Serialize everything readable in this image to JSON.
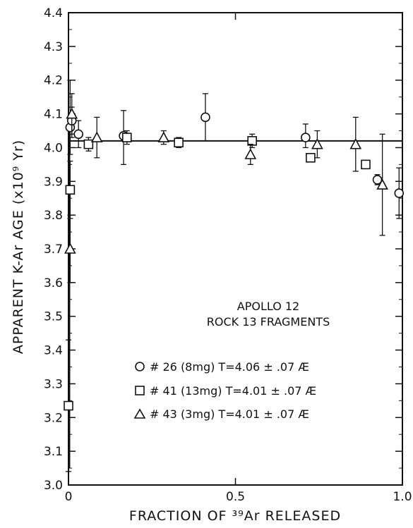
{
  "chart_data": {
    "type": "scatter",
    "title": "",
    "xlabel": "FRACTION OF ³⁹Ar RELEASED",
    "ylabel": "APPARENT K-Ar AGE (x10⁹ Yr)",
    "xlim": [
      0,
      1.0
    ],
    "ylim": [
      3.0,
      4.4
    ],
    "x_ticks": [
      "0",
      "0.5",
      "1.0"
    ],
    "y_ticks": [
      "3.0",
      "3.1",
      "3.2",
      "3.3",
      "3.4",
      "3.5",
      "3.6",
      "3.7",
      "3.8",
      "3.9",
      "4.0",
      "4.1",
      "4.2",
      "4.3",
      "4.4"
    ],
    "grid": false,
    "reference_line": 4.02,
    "annotation": [
      "APOLLO 12",
      "ROCK 13 FRAGMENTS"
    ],
    "legend_position": "lower-right",
    "series": [
      {
        "name": "# 26 (8mg) T=4.06 ± .07 Æ",
        "marker": "circle",
        "points": [
          {
            "x": 0.005,
            "y": 4.06,
            "lo": 3.98,
            "hi": 4.2
          },
          {
            "x": 0.01,
            "y": 4.08,
            "lo": 4.03,
            "hi": 4.12
          },
          {
            "x": 0.03,
            "y": 4.04,
            "lo": 4.0,
            "hi": 4.08
          },
          {
            "x": 0.165,
            "y": 4.035,
            "lo": 3.95,
            "hi": 4.11
          },
          {
            "x": 0.41,
            "y": 4.09,
            "lo": 4.02,
            "hi": 4.16
          },
          {
            "x": 0.71,
            "y": 4.03,
            "lo": 4.0,
            "hi": 4.07
          },
          {
            "x": 0.925,
            "y": 3.905,
            "lo": 3.89,
            "hi": 3.92
          },
          {
            "x": 0.99,
            "y": 3.865,
            "lo": 3.79,
            "hi": 3.94
          }
        ]
      },
      {
        "name": "# 41 (13mg) T=4.01 ± .07 Æ",
        "marker": "square",
        "points": [
          {
            "x": 0.0,
            "y": 3.235,
            "lo": 3.04,
            "hi": 3.43
          },
          {
            "x": 0.005,
            "y": 3.875,
            "lo": 3.79,
            "hi": 3.96
          },
          {
            "x": 0.06,
            "y": 4.01,
            "lo": 3.99,
            "hi": 4.03
          },
          {
            "x": 0.175,
            "y": 4.03,
            "lo": 4.01,
            "hi": 4.05
          },
          {
            "x": 0.33,
            "y": 4.015,
            "lo": 4.0,
            "hi": 4.03
          },
          {
            "x": 0.55,
            "y": 4.02,
            "lo": 4.0,
            "hi": 4.04
          },
          {
            "x": 0.725,
            "y": 3.97,
            "lo": 3.96,
            "hi": 3.98
          },
          {
            "x": 0.89,
            "y": 3.95,
            "lo": 3.94,
            "hi": 3.96
          }
        ]
      },
      {
        "name": "# 43 (3mg) T=4.01 ± .07 Æ",
        "marker": "triangle",
        "points": [
          {
            "x": 0.005,
            "y": 3.7,
            "lo": 3.6,
            "hi": 3.8
          },
          {
            "x": 0.01,
            "y": 4.1,
            "lo": 4.04,
            "hi": 4.16
          },
          {
            "x": 0.085,
            "y": 4.03,
            "lo": 3.97,
            "hi": 4.09
          },
          {
            "x": 0.285,
            "y": 4.03,
            "lo": 4.01,
            "hi": 4.05
          },
          {
            "x": 0.545,
            "y": 3.98,
            "lo": 3.95,
            "hi": 4.01
          },
          {
            "x": 0.745,
            "y": 4.01,
            "lo": 3.97,
            "hi": 4.05
          },
          {
            "x": 0.86,
            "y": 4.01,
            "lo": 3.93,
            "hi": 4.09
          },
          {
            "x": 0.94,
            "y": 3.89,
            "lo": 3.74,
            "hi": 4.04
          }
        ]
      }
    ]
  }
}
